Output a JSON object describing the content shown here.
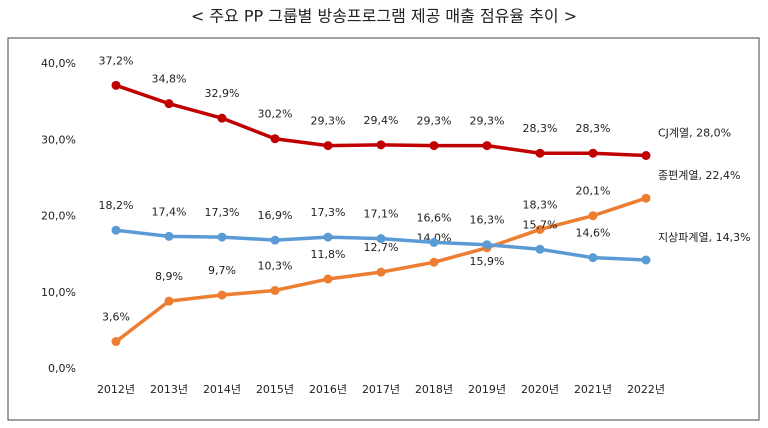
{
  "chart_data": {
    "type": "line",
    "title": "< 주요 PP 그룹별 방송프로그램 제공 매출 점유율 추이 >",
    "categories": [
      "2012년",
      "2013년",
      "2014년",
      "2015년",
      "2016년",
      "2017년",
      "2018년",
      "2019년",
      "2020년",
      "2021년",
      "2022년"
    ],
    "ylim": [
      0,
      40
    ],
    "yticks": [
      {
        "value": 0,
        "label": "0,0%"
      },
      {
        "value": 10,
        "label": "10,0%"
      },
      {
        "value": 20,
        "label": "20,0%"
      },
      {
        "value": 30,
        "label": "30,0%"
      },
      {
        "value": 40,
        "label": "40,0%"
      }
    ],
    "grid": false,
    "series": [
      {
        "color": "#c00000",
        "values": [
          37.2,
          34.8,
          32.9,
          30.2,
          29.3,
          29.4,
          29.3,
          29.3,
          28.3,
          28.3,
          28.0
        ],
        "value_labels": [
          "37,2%",
          "34,8%",
          "32,9%",
          "30,2%",
          "29,3%",
          "29,4%",
          "29,3%",
          "29,3%",
          "28,3%",
          "28,3%",
          "CJ계열, 28,0%"
        ]
      },
      {
        "color": "#ed7d31",
        "values": [
          3.6,
          8.9,
          9.7,
          10.3,
          11.8,
          12.7,
          14.0,
          15.9,
          18.3,
          20.1,
          22.4
        ],
        "value_labels": [
          "3,6%",
          "8,9%",
          "9,7%",
          "10,3%",
          "11,8%",
          "12,7%",
          "14,0%",
          "15,9%",
          "18,3%",
          "20,1%",
          "종편계열, 22,4%"
        ]
      },
      {
        "color": "#5b9bd5",
        "values": [
          18.2,
          17.4,
          17.3,
          16.9,
          17.3,
          17.1,
          16.6,
          16.3,
          15.7,
          14.6,
          14.3
        ],
        "value_labels": [
          "18,2%",
          "17,4%",
          "17,3%",
          "16,9%",
          "17,3%",
          "17,1%",
          "16,6%",
          "16,3%",
          "15,7%",
          "14,6%",
          "지상파계열, 14,3%"
        ]
      }
    ]
  }
}
